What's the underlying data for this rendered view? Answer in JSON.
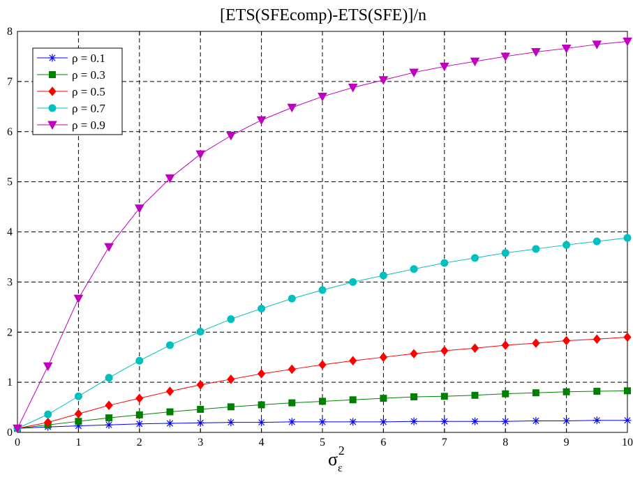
{
  "chart_data": {
    "type": "line",
    "title": "[ETS(SFEcomp)-ETS(SFE)]/n",
    "xlabel": {
      "base": "σ",
      "sub": "ε",
      "sup": "2"
    },
    "ylabel": "",
    "xlim": [
      0,
      10
    ],
    "ylim": [
      0,
      8
    ],
    "xticks": [
      "0",
      "1",
      "2",
      "3",
      "4",
      "5",
      "6",
      "7",
      "8",
      "9",
      "10"
    ],
    "yticks": [
      "0",
      "1",
      "2",
      "3",
      "4",
      "5",
      "6",
      "7",
      "8"
    ],
    "grid": true,
    "legend_position": "top-left",
    "x": [
      0,
      0.5,
      1,
      1.5,
      2,
      2.5,
      3,
      3.5,
      4,
      4.5,
      5,
      5.5,
      6,
      6.5,
      7,
      7.5,
      8,
      8.5,
      9,
      9.5,
      10
    ],
    "series": [
      {
        "name": "ρ = 0.1",
        "color": "#0000ff",
        "marker": "asterisk",
        "values": [
          0.08,
          0.11,
          0.13,
          0.15,
          0.17,
          0.18,
          0.19,
          0.2,
          0.2,
          0.21,
          0.21,
          0.21,
          0.21,
          0.22,
          0.22,
          0.22,
          0.22,
          0.23,
          0.23,
          0.24,
          0.24
        ]
      },
      {
        "name": "ρ = 0.3",
        "color": "#008000",
        "marker": "square",
        "values": [
          0.08,
          0.15,
          0.22,
          0.29,
          0.35,
          0.41,
          0.46,
          0.51,
          0.55,
          0.59,
          0.62,
          0.65,
          0.68,
          0.71,
          0.72,
          0.74,
          0.77,
          0.79,
          0.81,
          0.82,
          0.83
        ]
      },
      {
        "name": "ρ = 0.5",
        "color": "#ff0000",
        "marker": "diamond",
        "values": [
          0.08,
          0.2,
          0.37,
          0.54,
          0.68,
          0.82,
          0.95,
          1.06,
          1.17,
          1.26,
          1.35,
          1.43,
          1.5,
          1.57,
          1.63,
          1.68,
          1.74,
          1.78,
          1.83,
          1.86,
          1.9
        ]
      },
      {
        "name": "ρ = 0.7",
        "color": "#00bfbf",
        "marker": "circle",
        "values": [
          0.08,
          0.36,
          0.72,
          1.09,
          1.43,
          1.74,
          2.01,
          2.26,
          2.47,
          2.67,
          2.84,
          3.0,
          3.13,
          3.26,
          3.38,
          3.48,
          3.58,
          3.66,
          3.74,
          3.81,
          3.88
        ]
      },
      {
        "name": "ρ = 0.9",
        "color": "#bf00bf",
        "marker": "triangle-down",
        "values": [
          0.08,
          1.32,
          2.67,
          3.7,
          4.47,
          5.07,
          5.55,
          5.92,
          6.23,
          6.48,
          6.7,
          6.88,
          7.03,
          7.18,
          7.3,
          7.4,
          7.5,
          7.59,
          7.66,
          7.74,
          7.8
        ]
      }
    ]
  }
}
